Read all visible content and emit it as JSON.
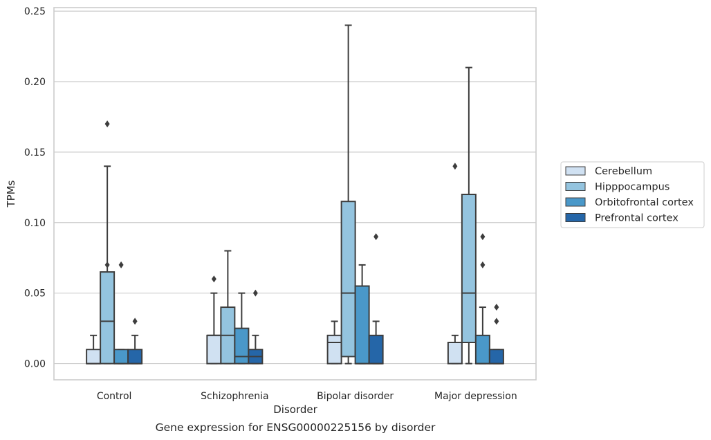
{
  "chart_data": {
    "type": "boxplot",
    "caption": "Gene expression for ENSG00000225156 by disorder",
    "xlabel": "Disorder",
    "ylabel": "TPMs",
    "ylim": [
      -0.0115,
      0.2525
    ],
    "yticks": [
      0.0,
      0.05,
      0.1,
      0.15,
      0.2,
      0.25
    ],
    "ytick_labels": [
      "0.00",
      "0.05",
      "0.10",
      "0.15",
      "0.20",
      "0.25"
    ],
    "categories": [
      "Control",
      "Schizophrenia",
      "Bipolar disorder",
      "Major depression"
    ],
    "grid": true,
    "legend_position": "right",
    "series": [
      {
        "name": "Cerebellum",
        "color": "#d0e1f2",
        "boxes": [
          {
            "q1": 0.0,
            "median": 0.0,
            "q3": 0.01,
            "whisker_low": 0.0,
            "whisker_high": 0.02,
            "outliers": []
          },
          {
            "q1": 0.0,
            "median": 0.02,
            "q3": 0.02,
            "whisker_low": 0.0,
            "whisker_high": 0.05,
            "outliers": [
              0.06
            ]
          },
          {
            "q1": 0.0,
            "median": 0.015,
            "q3": 0.02,
            "whisker_low": 0.0,
            "whisker_high": 0.03,
            "outliers": []
          },
          {
            "q1": 0.0,
            "median": 0.015,
            "q3": 0.015,
            "whisker_low": 0.0,
            "whisker_high": 0.02,
            "outliers": [
              0.14
            ]
          }
        ]
      },
      {
        "name": "Hipppocampus",
        "color": "#94c4df",
        "boxes": [
          {
            "q1": 0.0,
            "median": 0.03,
            "q3": 0.065,
            "whisker_low": 0.0,
            "whisker_high": 0.14,
            "outliers": [
              0.07,
              0.17
            ]
          },
          {
            "q1": 0.0,
            "median": 0.02,
            "q3": 0.04,
            "whisker_low": 0.0,
            "whisker_high": 0.08,
            "outliers": []
          },
          {
            "q1": 0.005,
            "median": 0.05,
            "q3": 0.115,
            "whisker_low": 0.0,
            "whisker_high": 0.24,
            "outliers": []
          },
          {
            "q1": 0.015,
            "median": 0.05,
            "q3": 0.12,
            "whisker_low": 0.0,
            "whisker_high": 0.21,
            "outliers": []
          }
        ]
      },
      {
        "name": "Orbitofrontal cortex",
        "color": "#4a98c9",
        "boxes": [
          {
            "q1": 0.0,
            "median": 0.0,
            "q3": 0.01,
            "whisker_low": 0.0,
            "whisker_high": 0.01,
            "outliers": [
              0.07
            ]
          },
          {
            "q1": 0.0,
            "median": 0.005,
            "q3": 0.025,
            "whisker_low": 0.0,
            "whisker_high": 0.05,
            "outliers": []
          },
          {
            "q1": 0.0,
            "median": 0.0,
            "q3": 0.055,
            "whisker_low": 0.0,
            "whisker_high": 0.07,
            "outliers": []
          },
          {
            "q1": 0.0,
            "median": 0.0,
            "q3": 0.02,
            "whisker_low": 0.0,
            "whisker_high": 0.04,
            "outliers": [
              0.07,
              0.09
            ]
          }
        ]
      },
      {
        "name": "Prefrontal cortex",
        "color": "#2566a8",
        "boxes": [
          {
            "q1": 0.0,
            "median": 0.0,
            "q3": 0.01,
            "whisker_low": 0.0,
            "whisker_high": 0.02,
            "outliers": [
              0.03
            ]
          },
          {
            "q1": 0.0,
            "median": 0.005,
            "q3": 0.01,
            "whisker_low": 0.0,
            "whisker_high": 0.02,
            "outliers": [
              0.05
            ]
          },
          {
            "q1": 0.0,
            "median": 0.0,
            "q3": 0.02,
            "whisker_low": 0.0,
            "whisker_high": 0.03,
            "outliers": [
              0.09
            ]
          },
          {
            "q1": 0.0,
            "median": 0.0,
            "q3": 0.01,
            "whisker_low": 0.0,
            "whisker_high": 0.01,
            "outliers": [
              0.03,
              0.04
            ]
          }
        ]
      }
    ]
  }
}
